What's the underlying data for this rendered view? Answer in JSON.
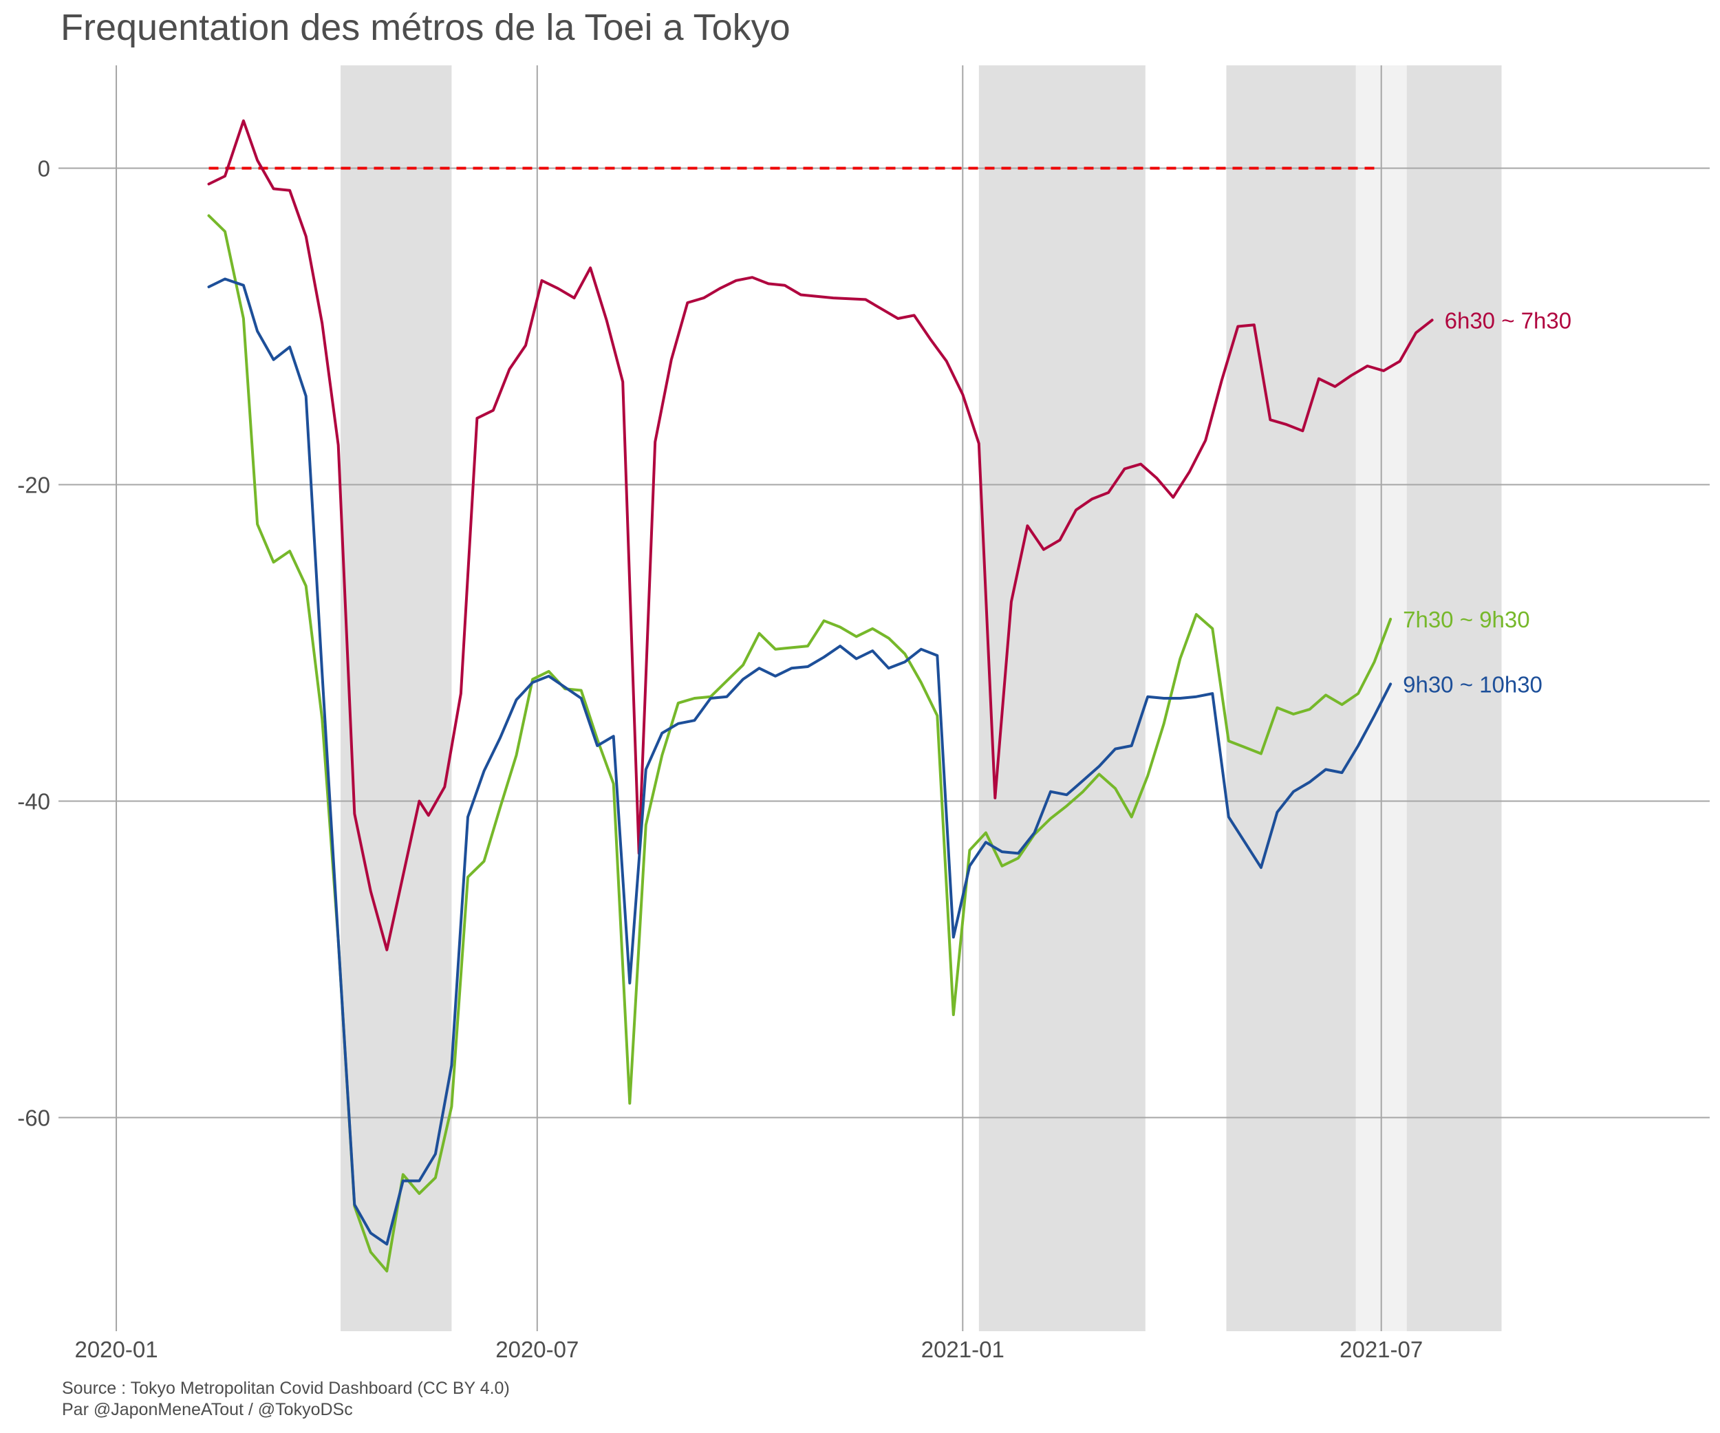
{
  "chart_data": {
    "type": "line",
    "title": "Frequentation des métros de la Toei a Tokyo",
    "caption_lines": [
      "Source : Tokyo Metropolitan Covid Dashboard (CC BY 4.0)",
      "Par @JaponMeneATout / @TokyoDSc"
    ],
    "xlabel": "",
    "ylabel": "",
    "xlim": [
      "2019-12-07",
      "2021-11-20"
    ],
    "ylim": [
      -73.5,
      6.5
    ],
    "x_ticks": [
      {
        "date": "2020-01-01",
        "label": "2020-01"
      },
      {
        "date": "2020-07-01",
        "label": "2020-07"
      },
      {
        "date": "2021-01-01",
        "label": "2021-01"
      },
      {
        "date": "2021-07-01",
        "label": "2021-07"
      }
    ],
    "y_ticks": [
      {
        "value": 0,
        "label": "0"
      },
      {
        "value": -20,
        "label": "-20"
      },
      {
        "value": -40,
        "label": "-40"
      },
      {
        "value": -60,
        "label": "-60"
      }
    ],
    "grid": true,
    "legend": "none (series labelled at line ends)",
    "reference_line": {
      "y": 0,
      "x_start": "2020-02-10",
      "x_end": "2021-06-28",
      "style": "dashed",
      "color": "#ee0000"
    },
    "shaded_periods": [
      {
        "start": "2020-04-07",
        "end": "2020-05-25",
        "color": "#e0e0e0"
      },
      {
        "start": "2021-01-08",
        "end": "2021-03-21",
        "color": "#e0e0e0"
      },
      {
        "start": "2021-04-25",
        "end": "2021-06-20",
        "color": "#e0e0e0"
      },
      {
        "start": "2021-06-20",
        "end": "2021-07-12",
        "color": "#f2f2f2"
      },
      {
        "start": "2021-07-12",
        "end": "2021-08-22",
        "color": "#e0e0e0"
      }
    ],
    "series": [
      {
        "name": "6h30 ~ 7h30",
        "color": "#b0063f",
        "points": [
          [
            "2020-02-10",
            -1
          ],
          [
            "2020-02-17",
            -0.5
          ],
          [
            "2020-02-25",
            3
          ],
          [
            "2020-03-02",
            0.5
          ],
          [
            "2020-03-09",
            -1.3
          ],
          [
            "2020-03-16",
            -1.4
          ],
          [
            "2020-03-23",
            -4.3
          ],
          [
            "2020-03-30",
            -9.8
          ],
          [
            "2020-04-06",
            -17.5
          ],
          [
            "2020-04-13",
            -40.8
          ],
          [
            "2020-04-20",
            -45.7
          ],
          [
            "2020-04-27",
            -49.4
          ],
          [
            "2020-05-11",
            -40
          ],
          [
            "2020-05-15",
            -40.9
          ],
          [
            "2020-05-22",
            -39.1
          ],
          [
            "2020-05-29",
            -33.2
          ],
          [
            "2020-06-05",
            -15.8
          ],
          [
            "2020-06-12",
            -15.3
          ],
          [
            "2020-06-19",
            -12.7
          ],
          [
            "2020-06-26",
            -11.2
          ],
          [
            "2020-07-03",
            -7.1
          ],
          [
            "2020-07-10",
            -7.6
          ],
          [
            "2020-07-17",
            -8.2
          ],
          [
            "2020-07-24",
            -6.3
          ],
          [
            "2020-07-31",
            -9.6
          ],
          [
            "2020-08-07",
            -13.5
          ],
          [
            "2020-08-14",
            -43.3
          ],
          [
            "2020-08-21",
            -17.3
          ],
          [
            "2020-08-28",
            -12.1
          ],
          [
            "2020-09-04",
            -8.5
          ],
          [
            "2020-09-11",
            -8.2
          ],
          [
            "2020-09-18",
            -7.6
          ],
          [
            "2020-09-25",
            -7.1
          ],
          [
            "2020-10-02",
            -6.9
          ],
          [
            "2020-10-09",
            -7.3
          ],
          [
            "2020-10-16",
            -7.4
          ],
          [
            "2020-10-23",
            -8
          ],
          [
            "2020-11-06",
            -8.2
          ],
          [
            "2020-11-20",
            -8.3
          ],
          [
            "2020-11-27",
            -8.9
          ],
          [
            "2020-12-04",
            -9.5
          ],
          [
            "2020-12-11",
            -9.3
          ],
          [
            "2020-12-18",
            -10.8
          ],
          [
            "2020-12-25",
            -12.2
          ],
          [
            "2021-01-01",
            -14.3
          ],
          [
            "2021-01-08",
            -17.4
          ],
          [
            "2021-01-15",
            -39.8
          ],
          [
            "2021-01-22",
            -27.4
          ],
          [
            "2021-01-29",
            -22.6
          ],
          [
            "2021-02-05",
            -24.1
          ],
          [
            "2021-02-12",
            -23.5
          ],
          [
            "2021-02-19",
            -21.6
          ],
          [
            "2021-02-26",
            -20.9
          ],
          [
            "2021-03-05",
            -20.5
          ],
          [
            "2021-03-12",
            -19
          ],
          [
            "2021-03-19",
            -18.7
          ],
          [
            "2021-03-26",
            -19.6
          ],
          [
            "2021-04-02",
            -20.8
          ],
          [
            "2021-04-09",
            -19.2
          ],
          [
            "2021-04-16",
            -17.2
          ],
          [
            "2021-04-23",
            -13.4
          ],
          [
            "2021-04-30",
            -10
          ],
          [
            "2021-05-07",
            -9.9
          ],
          [
            "2021-05-14",
            -15.9
          ],
          [
            "2021-05-21",
            -16.2
          ],
          [
            "2021-05-28",
            -16.6
          ],
          [
            "2021-06-04",
            -13.3
          ],
          [
            "2021-06-11",
            -13.8
          ],
          [
            "2021-06-18",
            -13.1
          ],
          [
            "2021-06-25",
            -12.5
          ],
          [
            "2021-07-02",
            -12.8
          ],
          [
            "2021-07-09",
            -12.2
          ],
          [
            "2021-07-16",
            -10.4
          ],
          [
            "2021-07-23",
            -9.6
          ]
        ]
      },
      {
        "name": "7h30 ~ 9h30",
        "color": "#76b82a",
        "points": [
          [
            "2020-02-10",
            -3
          ],
          [
            "2020-02-17",
            -4
          ],
          [
            "2020-02-25",
            -9.5
          ],
          [
            "2020-03-02",
            -22.5
          ],
          [
            "2020-03-09",
            -24.9
          ],
          [
            "2020-03-16",
            -24.2
          ],
          [
            "2020-03-23",
            -26.4
          ],
          [
            "2020-03-30",
            -34.8
          ],
          [
            "2020-04-06",
            -48.8
          ],
          [
            "2020-04-13",
            -65.6
          ],
          [
            "2020-04-20",
            -68.5
          ],
          [
            "2020-04-27",
            -69.7
          ],
          [
            "2020-05-04",
            -63.6
          ],
          [
            "2020-05-11",
            -64.8
          ],
          [
            "2020-05-18",
            -63.8
          ],
          [
            "2020-05-25",
            -59.3
          ],
          [
            "2020-06-01",
            -44.8
          ],
          [
            "2020-06-08",
            -43.8
          ],
          [
            "2020-06-15",
            -40.4
          ],
          [
            "2020-06-22",
            -37.1
          ],
          [
            "2020-06-29",
            -32.3
          ],
          [
            "2020-07-06",
            -31.8
          ],
          [
            "2020-07-13",
            -32.9
          ],
          [
            "2020-07-20",
            -33
          ],
          [
            "2020-07-27",
            -36.1
          ],
          [
            "2020-08-03",
            -38.9
          ],
          [
            "2020-08-10",
            -59.1
          ],
          [
            "2020-08-17",
            -41.5
          ],
          [
            "2020-08-24",
            -37.1
          ],
          [
            "2020-08-31",
            -33.8
          ],
          [
            "2020-09-07",
            -33.5
          ],
          [
            "2020-09-14",
            -33.4
          ],
          [
            "2020-09-21",
            -32.4
          ],
          [
            "2020-09-28",
            -31.4
          ],
          [
            "2020-10-05",
            -29.4
          ],
          [
            "2020-10-12",
            -30.4
          ],
          [
            "2020-10-19",
            -30.3
          ],
          [
            "2020-10-26",
            -30.2
          ],
          [
            "2020-11-02",
            -28.6
          ],
          [
            "2020-11-09",
            -29
          ],
          [
            "2020-11-16",
            -29.6
          ],
          [
            "2020-11-23",
            -29.1
          ],
          [
            "2020-11-30",
            -29.7
          ],
          [
            "2020-12-07",
            -30.7
          ],
          [
            "2020-12-14",
            -32.5
          ],
          [
            "2020-12-21",
            -34.6
          ],
          [
            "2020-12-28",
            -53.5
          ],
          [
            "2021-01-04",
            -43.1
          ],
          [
            "2021-01-11",
            -42
          ],
          [
            "2021-01-18",
            -44.1
          ],
          [
            "2021-01-25",
            -43.6
          ],
          [
            "2021-02-01",
            -42.1
          ],
          [
            "2021-02-08",
            -41.1
          ],
          [
            "2021-02-15",
            -40.3
          ],
          [
            "2021-02-22",
            -39.4
          ],
          [
            "2021-03-01",
            -38.3
          ],
          [
            "2021-03-08",
            -39.2
          ],
          [
            "2021-03-15",
            -41
          ],
          [
            "2021-03-22",
            -38.4
          ],
          [
            "2021-03-29",
            -35.1
          ],
          [
            "2021-04-05",
            -31
          ],
          [
            "2021-04-12",
            -28.2
          ],
          [
            "2021-04-19",
            -29.1
          ],
          [
            "2021-04-26",
            -36.2
          ],
          [
            "2021-05-03",
            -36.6
          ],
          [
            "2021-05-10",
            -37
          ],
          [
            "2021-05-17",
            -34.1
          ],
          [
            "2021-05-24",
            -34.5
          ],
          [
            "2021-05-31",
            -34.2
          ],
          [
            "2021-06-07",
            -33.3
          ],
          [
            "2021-06-14",
            -33.9
          ],
          [
            "2021-06-21",
            -33.2
          ],
          [
            "2021-06-28",
            -31.2
          ],
          [
            "2021-07-05",
            -28.5
          ]
        ]
      },
      {
        "name": "9h30 ~ 10h30",
        "color": "#1d4f99",
        "points": [
          [
            "2020-02-10",
            -7.5
          ],
          [
            "2020-02-17",
            -7
          ],
          [
            "2020-02-25",
            -7.4
          ],
          [
            "2020-03-02",
            -10.3
          ],
          [
            "2020-03-09",
            -12.1
          ],
          [
            "2020-03-16",
            -11.3
          ],
          [
            "2020-03-23",
            -14.4
          ],
          [
            "2020-03-30",
            -31.9
          ],
          [
            "2020-04-06",
            -48.8
          ],
          [
            "2020-04-13",
            -65.5
          ],
          [
            "2020-04-20",
            -67.3
          ],
          [
            "2020-04-27",
            -68
          ],
          [
            "2020-05-04",
            -64
          ],
          [
            "2020-05-11",
            -64
          ],
          [
            "2020-05-18",
            -62.3
          ],
          [
            "2020-05-25",
            -56.7
          ],
          [
            "2020-06-01",
            -41
          ],
          [
            "2020-06-08",
            -38.1
          ],
          [
            "2020-06-15",
            -36
          ],
          [
            "2020-06-22",
            -33.6
          ],
          [
            "2020-06-29",
            -32.5
          ],
          [
            "2020-07-06",
            -32.1
          ],
          [
            "2020-07-13",
            -32.8
          ],
          [
            "2020-07-20",
            -33.5
          ],
          [
            "2020-07-27",
            -36.5
          ],
          [
            "2020-08-03",
            -35.9
          ],
          [
            "2020-08-10",
            -51.5
          ],
          [
            "2020-08-17",
            -38
          ],
          [
            "2020-08-24",
            -35.7
          ],
          [
            "2020-08-31",
            -35.1
          ],
          [
            "2020-09-07",
            -34.9
          ],
          [
            "2020-09-14",
            -33.5
          ],
          [
            "2020-09-21",
            -33.4
          ],
          [
            "2020-09-28",
            -32.3
          ],
          [
            "2020-10-05",
            -31.6
          ],
          [
            "2020-10-12",
            -32.1
          ],
          [
            "2020-10-19",
            -31.6
          ],
          [
            "2020-10-26",
            -31.5
          ],
          [
            "2020-11-02",
            -30.9
          ],
          [
            "2020-11-09",
            -30.2
          ],
          [
            "2020-11-16",
            -31
          ],
          [
            "2020-11-23",
            -30.5
          ],
          [
            "2020-11-30",
            -31.6
          ],
          [
            "2020-12-07",
            -31.2
          ],
          [
            "2020-12-14",
            -30.4
          ],
          [
            "2020-12-21",
            -30.8
          ],
          [
            "2020-12-28",
            -48.6
          ],
          [
            "2021-01-04",
            -44.1
          ],
          [
            "2021-01-11",
            -42.6
          ],
          [
            "2021-01-18",
            -43.2
          ],
          [
            "2021-01-25",
            -43.3
          ],
          [
            "2021-02-01",
            -42
          ],
          [
            "2021-02-08",
            -39.4
          ],
          [
            "2021-02-15",
            -39.6
          ],
          [
            "2021-02-22",
            -38.7
          ],
          [
            "2021-03-01",
            -37.8
          ],
          [
            "2021-03-08",
            -36.7
          ],
          [
            "2021-03-15",
            -36.5
          ],
          [
            "2021-03-22",
            -33.4
          ],
          [
            "2021-03-29",
            -33.5
          ],
          [
            "2021-04-05",
            -33.5
          ],
          [
            "2021-04-12",
            -33.4
          ],
          [
            "2021-04-19",
            -33.2
          ],
          [
            "2021-04-26",
            -41
          ],
          [
            "2021-05-03",
            -42.6
          ],
          [
            "2021-05-10",
            -44.2
          ],
          [
            "2021-05-17",
            -40.7
          ],
          [
            "2021-05-24",
            -39.4
          ],
          [
            "2021-05-31",
            -38.8
          ],
          [
            "2021-06-07",
            -38
          ],
          [
            "2021-06-14",
            -38.2
          ],
          [
            "2021-06-21",
            -36.5
          ],
          [
            "2021-06-28",
            -34.6
          ],
          [
            "2021-07-05",
            -32.6
          ]
        ]
      }
    ]
  }
}
